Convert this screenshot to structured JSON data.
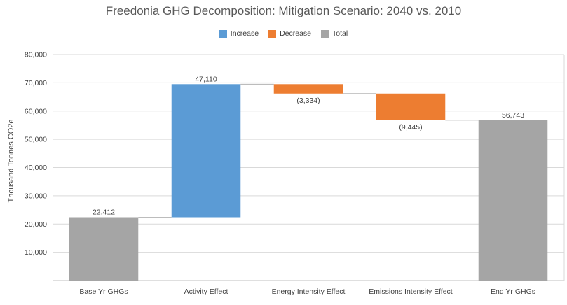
{
  "chart_data": {
    "type": "bar",
    "subtype": "waterfall",
    "title": "Freedonia GHG Decomposition: Mitigation Scenario: 2040 vs. 2010",
    "xlabel": "",
    "ylabel": "Thousand Tonnes CO2e",
    "ylim": [
      0,
      80000
    ],
    "yticks": [
      0,
      10000,
      20000,
      30000,
      40000,
      50000,
      60000,
      70000,
      80000
    ],
    "ytick_labels": [
      "-",
      "10,000",
      "20,000",
      "30,000",
      "40,000",
      "50,000",
      "60,000",
      "70,000",
      "80,000"
    ],
    "grid": true,
    "legend_position": "top",
    "legend": [
      {
        "name": "Increase",
        "color": "#5b9bd5"
      },
      {
        "name": "Decrease",
        "color": "#ed7d31"
      },
      {
        "name": "Total",
        "color": "#a5a5a5"
      }
    ],
    "categories": [
      "Base Yr GHGs",
      "Activity Effect",
      "Energy Intensity Effect",
      "Emissions Intensity Effect",
      "End Yr GHGs"
    ],
    "values": [
      22412,
      47110,
      -3334,
      -9445,
      56743
    ],
    "kinds": [
      "total",
      "increase",
      "decrease",
      "decrease",
      "total"
    ],
    "data_labels": [
      "22,412",
      "47,110",
      "(3,334)",
      "(9,445)",
      "56,743"
    ]
  }
}
